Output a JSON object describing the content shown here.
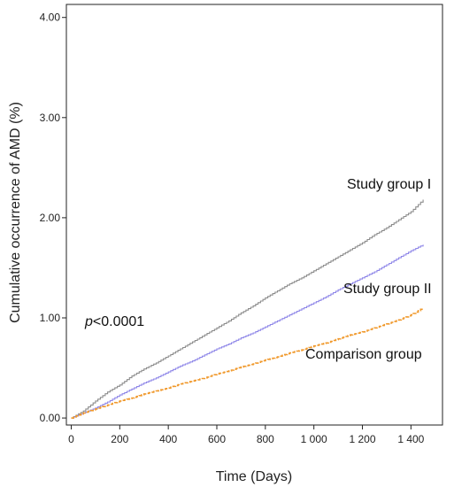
{
  "chart_data": {
    "type": "line",
    "xlabel": "Time (Days)",
    "ylabel": "Cumulative occurrence of AMD (%)",
    "xlim": [
      -20,
      1530
    ],
    "ylim": [
      -0.07,
      4.13
    ],
    "x_ticks": [
      {
        "value": 0,
        "label": "0"
      },
      {
        "value": 200,
        "label": "200"
      },
      {
        "value": 400,
        "label": "400"
      },
      {
        "value": 600,
        "label": "600"
      },
      {
        "value": 800,
        "label": "800"
      },
      {
        "value": 1000,
        "label": "1 000"
      },
      {
        "value": 1200,
        "label": "1 200"
      },
      {
        "value": 1400,
        "label": "1 400"
      }
    ],
    "y_ticks": [
      {
        "value": 0,
        "label": "0.00"
      },
      {
        "value": 1,
        "label": "1.00"
      },
      {
        "value": 2,
        "label": "2.00"
      },
      {
        "value": 3,
        "label": "3.00"
      },
      {
        "value": 4,
        "label": "4.00"
      }
    ],
    "grid": false,
    "legend": "none",
    "series": [
      {
        "name": "Study group I",
        "color": "#8c8c8c",
        "dash": "solid",
        "x": [
          0,
          50,
          100,
          150,
          200,
          250,
          300,
          350,
          400,
          450,
          500,
          550,
          600,
          650,
          700,
          750,
          800,
          850,
          900,
          950,
          1000,
          1050,
          1100,
          1150,
          1200,
          1250,
          1300,
          1350,
          1400,
          1450
        ],
        "y": [
          0.0,
          0.07,
          0.17,
          0.26,
          0.33,
          0.42,
          0.49,
          0.55,
          0.62,
          0.69,
          0.76,
          0.83,
          0.9,
          0.97,
          1.05,
          1.12,
          1.2,
          1.27,
          1.34,
          1.4,
          1.47,
          1.54,
          1.61,
          1.68,
          1.75,
          1.83,
          1.9,
          1.98,
          2.06,
          2.18
        ]
      },
      {
        "name": "Study group II",
        "color": "#8e86e8",
        "dash": "solid",
        "x": [
          0,
          50,
          100,
          150,
          200,
          250,
          300,
          350,
          400,
          450,
          500,
          550,
          600,
          650,
          700,
          750,
          800,
          850,
          900,
          950,
          1000,
          1050,
          1100,
          1150,
          1200,
          1250,
          1300,
          1350,
          1400,
          1450
        ],
        "y": [
          0.0,
          0.05,
          0.1,
          0.16,
          0.23,
          0.29,
          0.35,
          0.4,
          0.46,
          0.52,
          0.57,
          0.63,
          0.69,
          0.74,
          0.8,
          0.85,
          0.91,
          0.97,
          1.03,
          1.09,
          1.15,
          1.21,
          1.28,
          1.34,
          1.4,
          1.46,
          1.53,
          1.6,
          1.67,
          1.73
        ]
      },
      {
        "name": "Comparison group",
        "color": "#f0982a",
        "dash": "dashed",
        "x": [
          0,
          50,
          100,
          150,
          200,
          250,
          300,
          350,
          400,
          450,
          500,
          550,
          600,
          650,
          700,
          750,
          800,
          850,
          900,
          950,
          1000,
          1050,
          1100,
          1150,
          1200,
          1250,
          1300,
          1350,
          1400,
          1450
        ],
        "y": [
          0.0,
          0.05,
          0.09,
          0.13,
          0.17,
          0.2,
          0.24,
          0.27,
          0.3,
          0.34,
          0.37,
          0.4,
          0.44,
          0.47,
          0.51,
          0.54,
          0.58,
          0.61,
          0.65,
          0.68,
          0.72,
          0.75,
          0.79,
          0.83,
          0.86,
          0.9,
          0.94,
          0.98,
          1.03,
          1.1
        ]
      }
    ],
    "annotations": {
      "group1": "Study group I",
      "group2": "Study group II",
      "comparison": "Comparison group",
      "p_italic": "p",
      "p_rest": "<0.0001"
    }
  }
}
